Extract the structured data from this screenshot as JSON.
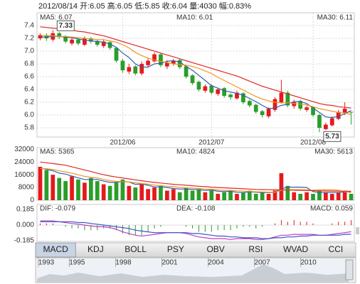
{
  "chart_data": {
    "type": "candlestick",
    "header": "2012/08/14 开:6.05 高:6.05 低:5.85 收:6.04 量:4030 幅:0.83%",
    "up_color": "#e41a1c",
    "down_color": "#2a9d2a",
    "xticks": [
      {
        "value": 13,
        "label": "2012/06"
      },
      {
        "value": 27,
        "label": "2012/07"
      },
      {
        "value": 43,
        "label": "2012/08"
      }
    ],
    "candles": {
      "open": [
        7.2,
        7.25,
        7.18,
        7.28,
        7.22,
        7.12,
        7.18,
        7.1,
        7.2,
        7.16,
        7.08,
        7.14,
        7.05,
        6.85,
        6.68,
        6.76,
        6.65,
        6.78,
        6.84,
        6.95,
        6.76,
        6.8,
        6.86,
        6.76,
        6.62,
        6.52,
        6.38,
        6.46,
        6.33,
        6.42,
        6.32,
        6.26,
        6.34,
        6.22,
        6.16,
        6.06,
        5.98,
        6.08,
        6.2,
        6.35,
        6.14,
        6.22,
        6.08,
        6.12,
        6.0,
        5.78,
        5.84,
        5.94,
        6.04,
        6.05
      ],
      "high": [
        7.28,
        7.28,
        7.33,
        7.3,
        7.25,
        7.22,
        7.2,
        7.23,
        7.22,
        7.18,
        7.18,
        7.16,
        7.06,
        6.88,
        6.8,
        6.78,
        6.84,
        6.9,
        6.98,
        6.97,
        6.86,
        6.88,
        6.88,
        6.78,
        6.64,
        6.54,
        6.48,
        6.48,
        6.43,
        6.44,
        6.34,
        6.38,
        6.36,
        6.24,
        6.18,
        6.08,
        6.12,
        6.28,
        6.55,
        6.38,
        6.24,
        6.24,
        6.15,
        6.14,
        6.02,
        5.88,
        5.98,
        6.08,
        6.2,
        6.05
      ],
      "low": [
        7.17,
        7.16,
        7.15,
        7.19,
        7.12,
        7.09,
        7.09,
        7.08,
        7.12,
        7.07,
        7.05,
        7.02,
        6.82,
        6.66,
        6.64,
        6.62,
        6.62,
        6.74,
        6.82,
        6.75,
        6.72,
        6.77,
        6.72,
        6.57,
        6.47,
        6.37,
        6.35,
        6.32,
        6.3,
        6.27,
        6.24,
        6.24,
        6.17,
        6.12,
        6.02,
        5.96,
        5.95,
        6.05,
        6.18,
        6.12,
        6.1,
        6.07,
        6.05,
        5.97,
        5.73,
        5.76,
        5.82,
        5.92,
        6.0,
        5.85
      ],
      "close": [
        7.25,
        7.2,
        7.28,
        7.22,
        7.15,
        7.18,
        7.12,
        7.2,
        7.15,
        7.1,
        7.15,
        7.05,
        6.85,
        6.7,
        6.75,
        6.65,
        6.8,
        6.85,
        6.95,
        6.78,
        6.82,
        6.85,
        6.75,
        6.6,
        6.5,
        6.4,
        6.45,
        6.35,
        6.4,
        6.3,
        6.28,
        6.35,
        6.2,
        6.15,
        6.05,
        6.0,
        6.1,
        6.25,
        6.35,
        6.15,
        6.2,
        6.1,
        6.12,
        6.0,
        5.8,
        5.85,
        5.95,
        6.05,
        6.1,
        6.04
      ]
    },
    "ylim": [
      5.656,
      7.6
    ],
    "yticks": [
      {
        "value": 7.4,
        "label": "7.4"
      },
      {
        "value": 7.2,
        "label": "7.2"
      },
      {
        "value": 7,
        "label": "7.0"
      },
      {
        "value": 6.8,
        "label": "6.8"
      },
      {
        "value": 6.6,
        "label": "6.6"
      },
      {
        "value": 6.4,
        "label": "6.4"
      },
      {
        "value": 6.2,
        "label": "6.2"
      },
      {
        "value": 6,
        "label": "6.0"
      },
      {
        "value": 5.8,
        "label": "5.8"
      }
    ],
    "grid": true,
    "lines": [
      {
        "name": "MA5: 6.07",
        "color": "#2f5fb3",
        "values": [
          7.22,
          7.22,
          7.23,
          7.23,
          7.22,
          7.21,
          7.19,
          7.17,
          7.16,
          7.15,
          7.14,
          7.11,
          7.06,
          6.97,
          6.9,
          6.8,
          6.75,
          6.75,
          6.8,
          6.81,
          6.84,
          6.85,
          6.83,
          6.76,
          6.7,
          6.62,
          6.54,
          6.46,
          6.42,
          6.38,
          6.36,
          6.34,
          6.31,
          6.26,
          6.21,
          6.15,
          6.1,
          6.11,
          6.15,
          6.17,
          6.21,
          6.21,
          6.18,
          6.11,
          6.04,
          5.97,
          5.96,
          5.98,
          6.02,
          6.07
        ]
      },
      {
        "name": "MA10: 6.01",
        "color": "#f0961e",
        "values": [
          7.25,
          7.24,
          7.24,
          7.23,
          7.23,
          7.22,
          7.21,
          7.2,
          7.19,
          7.18,
          7.18,
          7.16,
          7.14,
          7.1,
          7.05,
          6.98,
          6.93,
          6.89,
          6.86,
          6.84,
          6.82,
          6.8,
          6.79,
          6.78,
          6.76,
          6.73,
          6.69,
          6.65,
          6.59,
          6.54,
          6.49,
          6.44,
          6.39,
          6.34,
          6.29,
          6.25,
          6.22,
          6.2,
          6.19,
          6.19,
          6.18,
          6.17,
          6.16,
          6.13,
          6.1,
          6.08,
          6.06,
          6.04,
          6.03,
          6.01
        ]
      },
      {
        "name": "MA30: 6.11",
        "color": "#e02828",
        "values": [
          7.38,
          7.37,
          7.36,
          7.35,
          7.34,
          7.33,
          7.31,
          7.3,
          7.28,
          7.26,
          7.24,
          7.21,
          7.18,
          7.15,
          7.12,
          7.09,
          7.06,
          7.03,
          7.0,
          6.97,
          6.94,
          6.91,
          6.88,
          6.85,
          6.82,
          6.79,
          6.76,
          6.73,
          6.7,
          6.67,
          6.64,
          6.61,
          6.57,
          6.53,
          6.49,
          6.45,
          6.42,
          6.39,
          6.36,
          6.33,
          6.3,
          6.27,
          6.24,
          6.21,
          6.18,
          6.16,
          6.15,
          6.13,
          6.12,
          6.11
        ]
      }
    ],
    "volume": {
      "ylim": [
        0,
        33000
      ],
      "yticks": [
        32000,
        24000,
        16000,
        8000,
        0
      ],
      "values": [
        21000,
        19000,
        16000,
        14000,
        12000,
        15000,
        13000,
        11000,
        14000,
        12000,
        10000,
        9000,
        11000,
        13000,
        9000,
        8000,
        10000,
        7000,
        8000,
        9000,
        6000,
        7000,
        5000,
        8000,
        6000,
        7000,
        5000,
        6000,
        4000,
        5000,
        6000,
        4000,
        5000,
        6000,
        4000,
        5000,
        4000,
        6000,
        17000,
        9000,
        5000,
        4000,
        5000,
        4000,
        6000,
        5000,
        4000,
        5000,
        6000,
        4030
      ],
      "lines": [
        {
          "name": "MA5: 5365",
          "color": "#2f5fb3",
          "values": [
            20000,
            19500,
            18500,
            17000,
            16400,
            15200,
            14000,
            13000,
            13000,
            13000,
            12000,
            11200,
            11200,
            11800,
            11400,
            10000,
            10200,
            9400,
            8400,
            8400,
            8000,
            7400,
            7000,
            7000,
            6800,
            6600,
            6200,
            6400,
            5600,
            5400,
            5600,
            5000,
            4800,
            5200,
            5000,
            4800,
            4800,
            5000,
            7200,
            8200,
            8200,
            8200,
            8000,
            5400,
            4800,
            4800,
            4800,
            4800,
            5200,
            5365
          ]
        },
        {
          "name": "MA10: 4824",
          "color": "#f0961e",
          "values": [
            20000,
            19800,
            19200,
            18400,
            17800,
            17000,
            16000,
            15000,
            14400,
            14000,
            13000,
            12300,
            11800,
            11700,
            11400,
            11000,
            10500,
            10100,
            9500,
            9200,
            8800,
            8600,
            8000,
            7800,
            7600,
            7400,
            7000,
            6900,
            6500,
            6200,
            6200,
            5900,
            5700,
            5500,
            5300,
            5200,
            5100,
            5100,
            6200,
            6600,
            6600,
            6600,
            6500,
            6300,
            6500,
            6500,
            6500,
            6300,
            5300,
            4824
          ]
        },
        {
          "name": "MA30: 5613",
          "color": "#e02828",
          "values": [
            24000,
            23500,
            23000,
            22500,
            22000,
            21000,
            20000,
            19000,
            18000,
            17000,
            16000,
            15200,
            14600,
            14000,
            13400,
            12800,
            12200,
            11700,
            11200,
            10800,
            10400,
            10000,
            9700,
            9400,
            9100,
            8800,
            8500,
            8200,
            8000,
            7800,
            7600,
            7400,
            7200,
            7000,
            6800,
            6700,
            6600,
            6500,
            6500,
            6400,
            6300,
            6200,
            6100,
            6000,
            5900,
            5800,
            5750,
            5700,
            5650,
            5613
          ]
        }
      ]
    },
    "macd": {
      "ylim": [
        -0.193,
        0.244
      ],
      "yticks": [
        0.185,
        {
          "value": 0,
          "label": "0.000"
        },
        -0.185
      ],
      "label": "MACD: 0.059",
      "values": [
        0.02,
        0.02,
        0.02,
        0,
        -0.02,
        -0.04,
        -0.04,
        -0.06,
        -0.06,
        -0.06,
        -0.04,
        -0.04,
        -0.06,
        -0.1,
        -0.12,
        -0.12,
        -0.12,
        -0.08,
        -0.04,
        -0.02,
        0,
        0,
        0,
        -0.02,
        -0.04,
        -0.08,
        -0.08,
        -0.08,
        -0.06,
        -0.06,
        -0.06,
        -0.04,
        -0.02,
        -0.02,
        -0.04,
        -0.02,
        0,
        0.02,
        0.06,
        0.04,
        0.06,
        0.04,
        0.04,
        0.02,
        0,
        0,
        0.02,
        0.04,
        0.04,
        0.059
      ],
      "lines": [
        {
          "name": "DIF: -0.079",
          "color": "#c03cc0",
          "values": [
            0.05,
            0.05,
            0.05,
            0.04,
            0.03,
            0.02,
            0.01,
            0,
            -0.01,
            -0.02,
            -0.02,
            -0.03,
            -0.05,
            -0.08,
            -0.1,
            -0.12,
            -0.13,
            -0.12,
            -0.11,
            -0.1,
            -0.09,
            -0.09,
            -0.09,
            -0.1,
            -0.12,
            -0.14,
            -0.15,
            -0.16,
            -0.16,
            -0.16,
            -0.17,
            -0.16,
            -0.16,
            -0.16,
            -0.17,
            -0.17,
            -0.16,
            -0.14,
            -0.12,
            -0.12,
            -0.11,
            -0.11,
            -0.11,
            -0.11,
            -0.12,
            -0.12,
            -0.11,
            -0.1,
            -0.09,
            -0.079
          ]
        },
        {
          "name": "DEA: -0.108",
          "color": "#3d55c8",
          "values": [
            0.04,
            0.04,
            0.04,
            0.04,
            0.04,
            0.04,
            0.03,
            0.03,
            0.02,
            0.01,
            0,
            -0.01,
            -0.02,
            -0.03,
            -0.04,
            -0.06,
            -0.07,
            -0.08,
            -0.09,
            -0.09,
            -0.09,
            -0.09,
            -0.09,
            -0.09,
            -0.1,
            -0.1,
            -0.11,
            -0.12,
            -0.13,
            -0.13,
            -0.14,
            -0.14,
            -0.15,
            -0.15,
            -0.15,
            -0.16,
            -0.16,
            -0.15,
            -0.15,
            -0.14,
            -0.14,
            -0.13,
            -0.13,
            -0.12,
            -0.12,
            -0.12,
            -0.12,
            -0.12,
            -0.11,
            -0.108
          ]
        }
      ]
    },
    "tabs": [
      "MACD",
      "KDJ",
      "BOLL",
      "PSY",
      "OBV",
      "RSI",
      "WVAD",
      "CCI"
    ],
    "active_tab": 0,
    "timeline": {
      "xlim": [
        1992.4,
        2012.6
      ],
      "xticks": [
        1993,
        1995,
        1998,
        2001,
        2004,
        2007,
        2010
      ]
    }
  }
}
